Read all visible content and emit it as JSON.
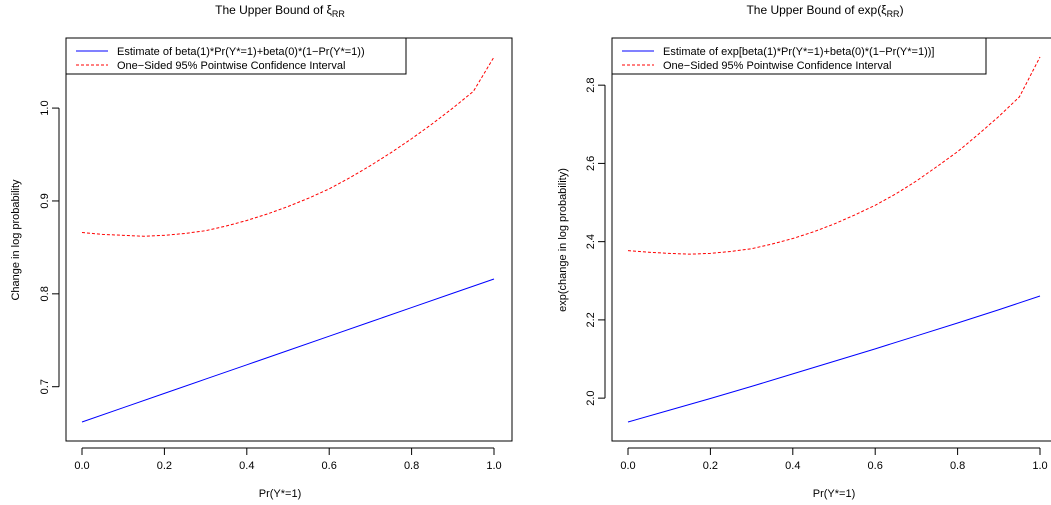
{
  "chart_data": [
    {
      "type": "line",
      "title": "The Upper Bound of ξ",
      "title_subscript": "RR",
      "xlabel": "Pr(Y*=1)",
      "ylabel": "Change in log probability",
      "xlim": [
        0,
        1
      ],
      "ylim": [
        0.64,
        1.07
      ],
      "x_ticks": [
        0.0,
        0.2,
        0.4,
        0.6,
        0.8,
        1.0
      ],
      "x_tick_labels": [
        "0.0",
        "0.2",
        "0.4",
        "0.6",
        "0.8",
        "1.0"
      ],
      "y_ticks": [
        0.7,
        0.8,
        0.9,
        1.0
      ],
      "y_tick_labels": [
        "0.7",
        "0.8",
        "0.9",
        "1.0"
      ],
      "grid": false,
      "legend_position": "top-left",
      "series": [
        {
          "name": "Estimate of beta(1)*Pr(Y*=1)+beta(0)*(1−Pr(Y*=1))",
          "color": "#0000ff",
          "dash": "solid",
          "x": [
            0.0,
            0.1,
            0.2,
            0.3,
            0.4,
            0.5,
            0.6,
            0.7,
            0.8,
            0.9,
            1.0
          ],
          "values": [
            0.662,
            0.6774,
            0.6928,
            0.7082,
            0.7236,
            0.739,
            0.7544,
            0.7698,
            0.7852,
            0.8006,
            0.816
          ]
        },
        {
          "name": "One−Sided 95% Pointwise Confidence Interval",
          "color": "#ff0000",
          "dash": "dashed",
          "x": [
            0.0,
            0.05,
            0.1,
            0.15,
            0.2,
            0.25,
            0.3,
            0.35,
            0.4,
            0.45,
            0.5,
            0.55,
            0.6,
            0.65,
            0.7,
            0.75,
            0.8,
            0.85,
            0.9,
            0.95,
            1.0
          ],
          "values": [
            0.866,
            0.864,
            0.863,
            0.862,
            0.863,
            0.865,
            0.868,
            0.873,
            0.879,
            0.886,
            0.894,
            0.903,
            0.913,
            0.925,
            0.938,
            0.952,
            0.967,
            0.983,
            1.0,
            1.018,
            1.055
          ]
        }
      ]
    },
    {
      "type": "line",
      "title": "The Upper Bound of exp(ξ",
      "title_subscript": "RR",
      "title_suffix": ")",
      "xlabel": "Pr(Y*=1)",
      "ylabel": "exp(change in log probability)",
      "xlim": [
        0,
        1
      ],
      "ylim": [
        1.91,
        2.88
      ],
      "x_ticks": [
        0.0,
        0.2,
        0.4,
        0.6,
        0.8,
        1.0
      ],
      "x_tick_labels": [
        "0.0",
        "0.2",
        "0.4",
        "0.6",
        "0.8",
        "1.0"
      ],
      "y_ticks": [
        2.0,
        2.2,
        2.4,
        2.6,
        2.8
      ],
      "y_tick_labels": [
        "2.0",
        "2.2",
        "2.4",
        "2.6",
        "2.8"
      ],
      "grid": false,
      "legend_position": "top-left",
      "series": [
        {
          "name": "Estimate of exp[beta(1)*Pr(Y*=1)+beta(0)*(1−Pr(Y*=1))]",
          "color": "#0000ff",
          "dash": "solid",
          "x": [
            0.0,
            0.1,
            0.2,
            0.3,
            0.4,
            0.5,
            0.6,
            0.7,
            0.8,
            0.9,
            1.0
          ],
          "values": [
            1.939,
            1.969,
            1.999,
            2.03,
            2.062,
            2.094,
            2.126,
            2.159,
            2.192,
            2.226,
            2.261
          ]
        },
        {
          "name": "One−Sided 95% Pointwise Confidence Interval",
          "color": "#ff0000",
          "dash": "dashed",
          "x": [
            0.0,
            0.05,
            0.1,
            0.15,
            0.2,
            0.25,
            0.3,
            0.35,
            0.4,
            0.45,
            0.5,
            0.55,
            0.6,
            0.65,
            0.7,
            0.75,
            0.8,
            0.85,
            0.9,
            0.95,
            1.0
          ],
          "values": [
            2.377,
            2.373,
            2.37,
            2.368,
            2.37,
            2.375,
            2.382,
            2.394,
            2.408,
            2.425,
            2.445,
            2.468,
            2.493,
            2.522,
            2.555,
            2.592,
            2.63,
            2.674,
            2.72,
            2.77,
            2.872
          ]
        }
      ]
    }
  ]
}
